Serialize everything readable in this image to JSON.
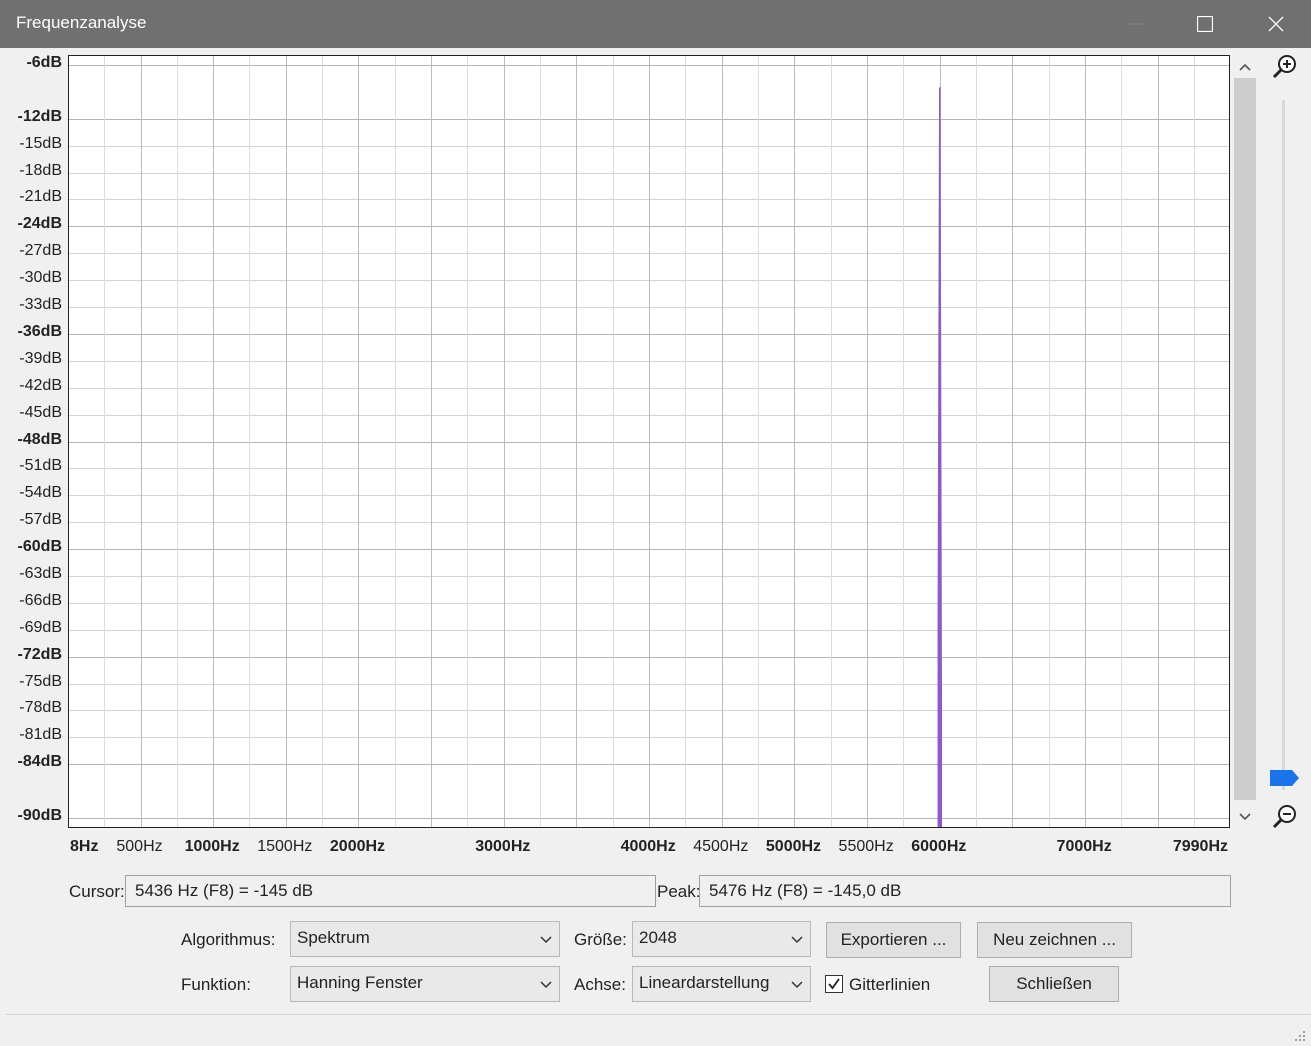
{
  "window": {
    "title": "Frequenzanalyse"
  },
  "chart_data": {
    "type": "line",
    "title": "",
    "xlabel": "",
    "ylabel": "",
    "xlim": [
      8,
      7990
    ],
    "ylim": [
      -91,
      -5
    ],
    "grid": true,
    "y_ticks": [
      "-6dB",
      "-12dB",
      "-15dB",
      "-18dB",
      "-21dB",
      "-24dB",
      "-27dB",
      "-30dB",
      "-33dB",
      "-36dB",
      "-39dB",
      "-42dB",
      "-45dB",
      "-48dB",
      "-51dB",
      "-54dB",
      "-57dB",
      "-60dB",
      "-63dB",
      "-66dB",
      "-69dB",
      "-72dB",
      "-75dB",
      "-78dB",
      "-81dB",
      "-84dB",
      "-90dB"
    ],
    "y_ticks_bold": [
      "-6dB",
      "-12dB",
      "-24dB",
      "-36dB",
      "-48dB",
      "-60dB",
      "-72dB",
      "-84dB",
      "-90dB"
    ],
    "x_ticks": [
      "8Hz",
      "500Hz",
      "1000Hz",
      "1500Hz",
      "2000Hz",
      "3000Hz",
      "4000Hz",
      "4500Hz",
      "5000Hz",
      "5500Hz",
      "6000Hz",
      "7000Hz",
      "7990Hz"
    ],
    "x_ticks_bold": [
      "8Hz",
      "1000Hz",
      "2000Hz",
      "3000Hz",
      "4000Hz",
      "5000Hz",
      "6000Hz",
      "7000Hz",
      "7990Hz"
    ],
    "series": [
      {
        "values": [
          {
            "x": 5990,
            "y": -91
          },
          {
            "x": 5990,
            "y": -69
          },
          {
            "x": 6000,
            "y": -8.5
          },
          {
            "x": 6010,
            "y": -78
          },
          {
            "x": 6010,
            "y": -91
          }
        ],
        "color": "#8e5bc5"
      }
    ]
  },
  "readouts": {
    "cursor_label": "Cursor:",
    "cursor_value": "5436 Hz (F8) = -145 dB",
    "peak_label": "Peak:",
    "peak_value": "5476 Hz (F8) = -145,0 dB"
  },
  "controls": {
    "algorithm_label": "Algorithmus:",
    "algorithm_value": "Spektrum",
    "function_label": "Funktion:",
    "function_value": "Hanning Fenster",
    "size_label": "Größe:",
    "size_value": "2048",
    "axis_label": "Achse:",
    "axis_value": "Lineardarstellung",
    "export_label": "Exportieren ...",
    "redraw_label": "Neu zeichnen ...",
    "gridlines_label": "Gitterlinien",
    "gridlines_checked": true,
    "close_label": "Schließen"
  },
  "colors": {
    "series": "#8e5bc5",
    "zoom_thumb": "#1a73e8"
  }
}
